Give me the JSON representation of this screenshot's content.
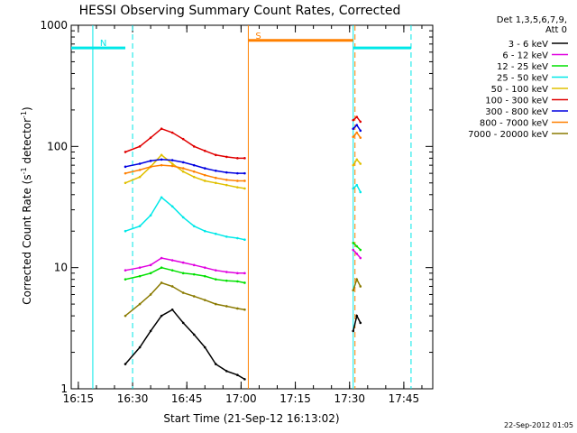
{
  "chart_data": {
    "type": "line",
    "title": "HESSI Observing Summary Count Rates, Corrected",
    "xlabel": "Start Time (21-Sep-12 16:13:02)",
    "ylabel_main": "Corrected Count Rate (s",
    "ylabel_sup1": "-1",
    "ylabel_mid": " detector",
    "ylabel_sup2": "-1",
    "ylabel_end": ")",
    "y_scale": "log",
    "ylim": [
      1,
      1000
    ],
    "xlim": [
      "16:13:02",
      "17:53:00"
    ],
    "x_ticks": [
      "16:15",
      "16:30",
      "16:45",
      "17:00",
      "17:15",
      "17:30",
      "17:45"
    ],
    "y_ticks": [
      "1",
      "10",
      "100",
      "1000"
    ],
    "legend_header": [
      "Det 1,3,5,6,7,9,",
      "Att 0"
    ],
    "legend_placement": "right",
    "series": [
      {
        "name": "3 - 6 keV",
        "color": "#000000",
        "x": [
          "16:28",
          "16:32",
          "16:35",
          "16:38",
          "16:41",
          "16:44",
          "16:47",
          "16:50",
          "16:53",
          "16:56",
          "16:59",
          "17:01",
          "17:31",
          "17:32",
          "17:33"
        ],
        "y": [
          1.6,
          2.2,
          3.0,
          4.0,
          4.5,
          3.5,
          2.8,
          2.2,
          1.6,
          1.4,
          1.3,
          1.2,
          3.0,
          4.0,
          3.5
        ]
      },
      {
        "name": "6 - 12 keV",
        "color": "#e000e0",
        "x": [
          "16:28",
          "16:32",
          "16:35",
          "16:38",
          "16:41",
          "16:44",
          "16:47",
          "16:50",
          "16:53",
          "16:56",
          "16:59",
          "17:01",
          "17:31",
          "17:32",
          "17:33"
        ],
        "y": [
          9.5,
          10,
          10.5,
          12,
          11.5,
          11,
          10.5,
          10,
          9.5,
          9.2,
          9.0,
          9.0,
          14,
          13,
          12
        ]
      },
      {
        "name": "12 - 25 keV",
        "color": "#00e000",
        "x": [
          "16:28",
          "16:32",
          "16:35",
          "16:38",
          "16:41",
          "16:44",
          "16:47",
          "16:50",
          "16:53",
          "16:56",
          "16:59",
          "17:01",
          "17:31",
          "17:32",
          "17:33"
        ],
        "y": [
          8.0,
          8.5,
          9.0,
          10,
          9.5,
          9.0,
          8.8,
          8.5,
          8.0,
          7.8,
          7.7,
          7.5,
          16,
          15,
          14
        ]
      },
      {
        "name": "25 - 50 keV",
        "color": "#00e8e8",
        "x": [
          "16:28",
          "16:32",
          "16:35",
          "16:38",
          "16:41",
          "16:44",
          "16:47",
          "16:50",
          "16:53",
          "16:56",
          "16:59",
          "17:01",
          "17:31",
          "17:32",
          "17:33"
        ],
        "y": [
          20,
          22,
          27,
          38,
          32,
          26,
          22,
          20,
          19,
          18,
          17.5,
          17,
          45,
          48,
          42
        ]
      },
      {
        "name": "50 - 100 keV",
        "color": "#e0c000",
        "x": [
          "16:28",
          "16:32",
          "16:35",
          "16:38",
          "16:41",
          "16:44",
          "16:47",
          "16:50",
          "16:53",
          "16:56",
          "16:59",
          "17:01",
          "17:31",
          "17:32",
          "17:33"
        ],
        "y": [
          50,
          56,
          68,
          85,
          72,
          62,
          56,
          52,
          50,
          48,
          46,
          45,
          70,
          78,
          72
        ]
      },
      {
        "name": "100 - 300 keV",
        "color": "#e00000",
        "x": [
          "16:28",
          "16:32",
          "16:35",
          "16:38",
          "16:41",
          "16:44",
          "16:47",
          "16:50",
          "16:53",
          "16:56",
          "16:59",
          "17:01",
          "17:31",
          "17:32",
          "17:33"
        ],
        "y": [
          90,
          100,
          118,
          140,
          130,
          115,
          100,
          92,
          85,
          82,
          80,
          80,
          165,
          175,
          160
        ]
      },
      {
        "name": "300 - 800 keV",
        "color": "#0000e0",
        "x": [
          "16:28",
          "16:32",
          "16:35",
          "16:38",
          "16:41",
          "16:44",
          "16:47",
          "16:50",
          "16:53",
          "16:56",
          "16:59",
          "17:01",
          "17:31",
          "17:32",
          "17:33"
        ],
        "y": [
          68,
          72,
          76,
          78,
          77,
          74,
          70,
          66,
          63,
          61,
          60,
          60,
          140,
          150,
          135
        ]
      },
      {
        "name": "800 - 7000 keV",
        "color": "#ff8000",
        "x": [
          "16:28",
          "16:32",
          "16:35",
          "16:38",
          "16:41",
          "16:44",
          "16:47",
          "16:50",
          "16:53",
          "16:56",
          "16:59",
          "17:01",
          "17:31",
          "17:32",
          "17:33"
        ],
        "y": [
          60,
          64,
          68,
          70,
          69,
          66,
          62,
          58,
          55,
          53,
          52,
          52,
          120,
          130,
          118
        ]
      },
      {
        "name": "7000 - 20000 keV",
        "color": "#8a7a00",
        "x": [
          "16:28",
          "16:32",
          "16:35",
          "16:38",
          "16:41",
          "16:44",
          "16:47",
          "16:50",
          "16:53",
          "16:56",
          "16:59",
          "17:01",
          "17:31",
          "17:32",
          "17:33"
        ],
        "y": [
          4.0,
          5.0,
          6.0,
          7.5,
          7.0,
          6.2,
          5.8,
          5.4,
          5.0,
          4.8,
          4.6,
          4.5,
          6.5,
          8.0,
          7.0
        ]
      }
    ],
    "saa_flags": [
      {
        "label": "",
        "start": "16:13:02",
        "end": "16:19:00",
        "level": 650,
        "color": "#00e8e8"
      },
      {
        "label": "N",
        "start": "16:19:00",
        "end": "16:28:00",
        "level": 650,
        "color": "#00e8e8"
      },
      {
        "label": "S",
        "start": "17:02:00",
        "end": "17:31:00",
        "level": 750,
        "color": "#ff8000"
      },
      {
        "label": "",
        "start": "17:31:00",
        "end": "17:47:00",
        "level": 650,
        "color": "#00e8e8"
      }
    ],
    "vertical_markers": [
      {
        "time": "16:19:00",
        "style": "solid",
        "color": "#00e8e8"
      },
      {
        "time": "16:30:00",
        "style": "dashed",
        "color": "#00e8e8"
      },
      {
        "time": "17:02:00",
        "style": "solid",
        "color": "#ff8000"
      },
      {
        "time": "17:31:00",
        "style": "solid",
        "color": "#00e8e8"
      },
      {
        "time": "17:31:30",
        "style": "dashed",
        "color": "#ff8000"
      },
      {
        "time": "17:47:00",
        "style": "dashed",
        "color": "#00e8e8"
      }
    ],
    "grid": false
  },
  "footer": {
    "timestamp": "22-Sep-2012 01:05"
  }
}
